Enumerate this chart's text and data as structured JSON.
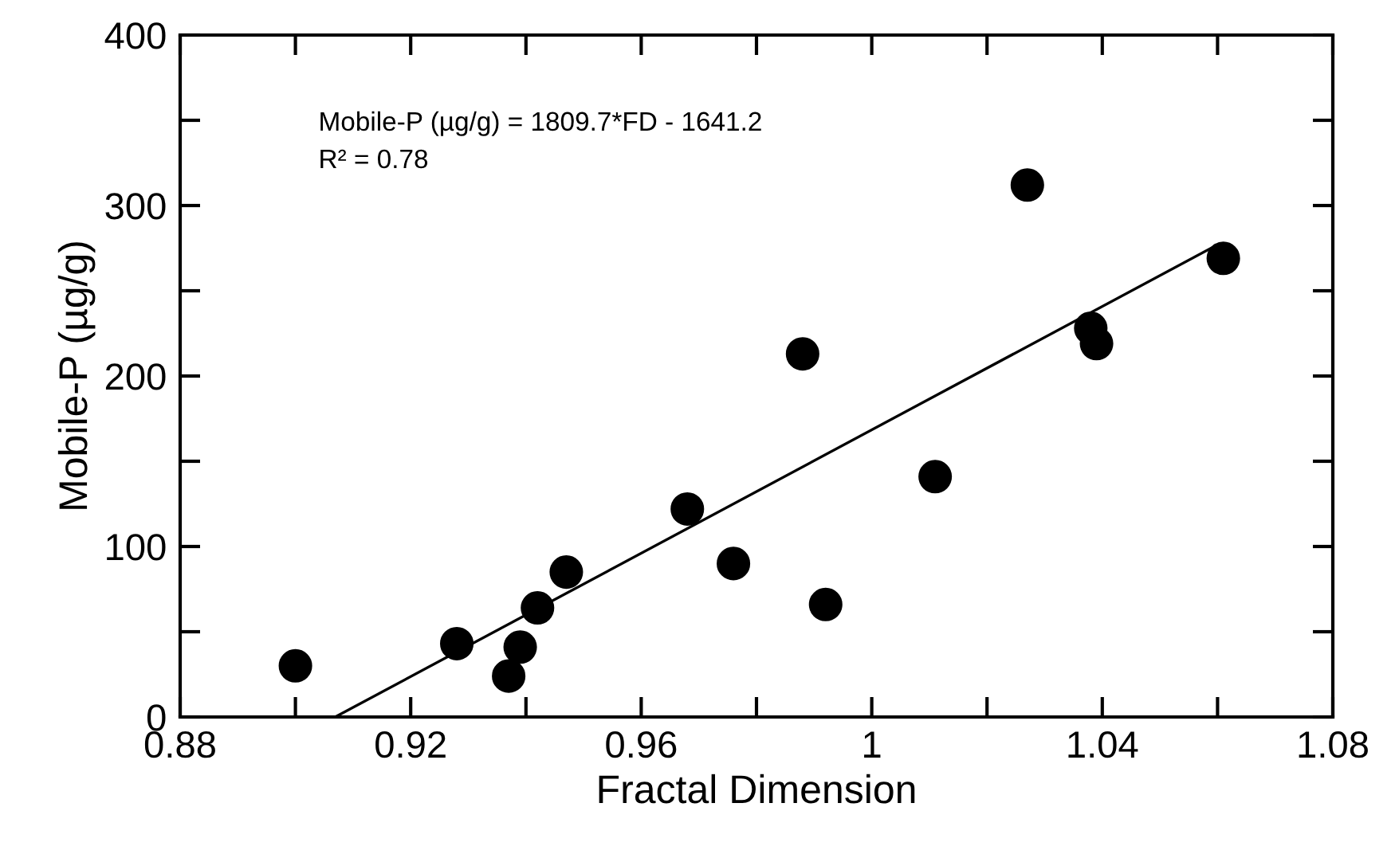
{
  "chart_data": {
    "type": "scatter",
    "xlabel": "Fractal Dimension",
    "ylabel": "Mobile-P (µg/g)",
    "annotations": [
      "Mobile-P (µg/g) = 1809.7*FD - 1641.2",
      "R² = 0.78"
    ],
    "xlim": [
      0.88,
      1.08
    ],
    "ylim": [
      0,
      400
    ],
    "xticks": [
      0.88,
      {
        "value": 0.9,
        "label": null
      },
      0.92,
      {
        "value": 0.94,
        "label": null
      },
      0.96,
      {
        "value": 0.98,
        "label": null
      },
      1,
      {
        "value": 1.02,
        "label": null
      },
      1.04,
      {
        "value": 1.06,
        "label": null
      },
      1.08
    ],
    "yticks": [
      0,
      {
        "value": 50,
        "label": null
      },
      100,
      {
        "value": 150,
        "label": null
      },
      200,
      {
        "value": 250,
        "label": null
      },
      300,
      {
        "value": 350,
        "label": null
      },
      400
    ],
    "grid": false,
    "legend": false,
    "marker": "circle",
    "series": [
      {
        "color": "#000000",
        "x": [
          0.9,
          0.928,
          0.939,
          0.937,
          0.942,
          0.947,
          0.968,
          0.976,
          0.988,
          0.992,
          1.011,
          1.027,
          1.038,
          1.039,
          1.061
        ],
        "values": [
          30,
          43,
          41,
          24,
          64,
          85,
          122,
          90,
          213,
          66,
          141,
          312,
          228,
          219,
          269
        ]
      },
      {
        "type": "line",
        "color": "#000000",
        "line_style": "solid",
        "marker": "none",
        "x": [
          0.9069,
          1.06
        ],
        "values": [
          0,
          277
        ]
      }
    ]
  }
}
